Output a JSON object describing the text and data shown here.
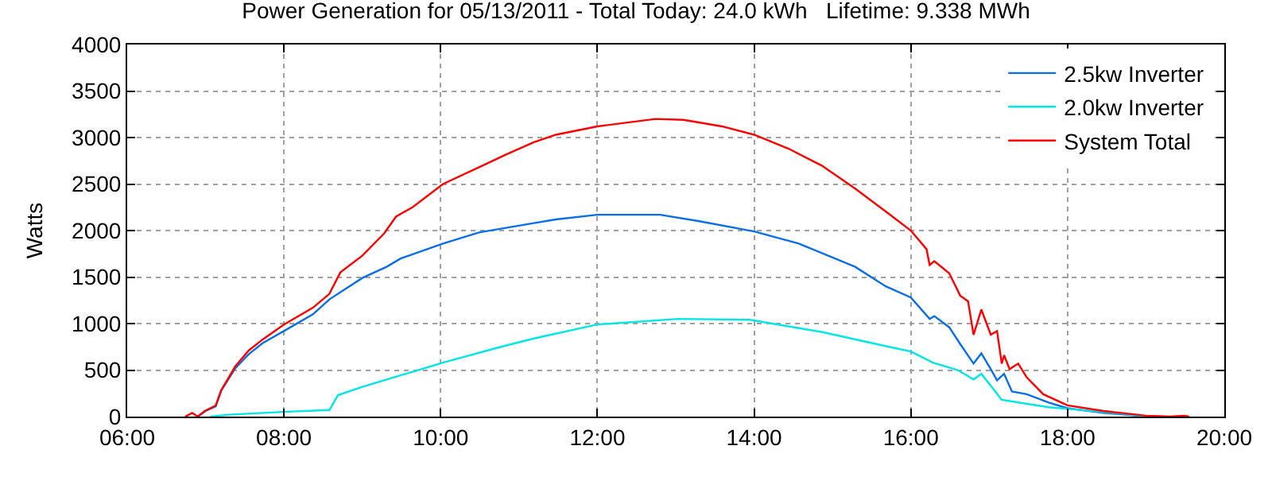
{
  "chart_data": {
    "type": "line",
    "title": "Power Generation for 05/13/2011 - Total Today: 24.0 kWh   Lifetime: 9.338 MWh",
    "ylabel": "Watts",
    "xlim": [
      6,
      20
    ],
    "xticks": [
      {
        "value": 6,
        "label": "06:00"
      },
      {
        "value": 8,
        "label": "08:00"
      },
      {
        "value": 10,
        "label": "10:00"
      },
      {
        "value": 12,
        "label": "12:00"
      },
      {
        "value": 14,
        "label": "14:00"
      },
      {
        "value": 16,
        "label": "16:00"
      },
      {
        "value": 18,
        "label": "18:00"
      },
      {
        "value": 20,
        "label": "20:00"
      }
    ],
    "ylim": [
      0,
      4000
    ],
    "yticks": [
      0,
      500,
      1000,
      1500,
      2000,
      2500,
      3000,
      3500,
      4000
    ],
    "grid": true,
    "legend": "top right",
    "marker": "none",
    "line_style": "solid",
    "series": [
      {
        "name": "2.5kw Inverter",
        "color": "#0a6ee6",
        "x": [
          6.9,
          7.0,
          7.13,
          7.2,
          7.38,
          7.55,
          7.73,
          8.0,
          8.37,
          8.58,
          9.0,
          9.31,
          9.49,
          10.03,
          10.49,
          11.19,
          11.47,
          12.0,
          12.8,
          13.3,
          14.0,
          14.57,
          15.29,
          15.68,
          16.0,
          16.24,
          16.3,
          16.49,
          16.63,
          16.8,
          16.9,
          17.02,
          17.1,
          17.19,
          17.29,
          17.48,
          17.76,
          18.0,
          18.46,
          18.89,
          19.0
        ],
        "values": [
          0,
          60,
          110,
          280,
          520,
          670,
          790,
          920,
          1100,
          1260,
          1490,
          1610,
          1700,
          1860,
          1980,
          2080,
          2120,
          2170,
          2170,
          2100,
          1990,
          1860,
          1610,
          1400,
          1280,
          1050,
          1080,
          960,
          780,
          570,
          680,
          510,
          390,
          460,
          270,
          240,
          150,
          90,
          40,
          10,
          0
        ]
      },
      {
        "name": "2.0kw Inverter",
        "color": "#00e6e6",
        "x": [
          7.06,
          7.3,
          7.98,
          8.58,
          8.69,
          9.0,
          10.03,
          10.77,
          11.19,
          12.0,
          13.03,
          13.95,
          14.86,
          15.72,
          16.0,
          16.28,
          16.6,
          16.8,
          16.9,
          17.05,
          17.16,
          17.76,
          18.46,
          18.89,
          19.0
        ],
        "values": [
          0,
          20,
          50,
          70,
          230,
          320,
          580,
          750,
          840,
          990,
          1050,
          1040,
          910,
          750,
          700,
          580,
          500,
          400,
          460,
          300,
          180,
          100,
          50,
          15,
          0
        ]
      },
      {
        "name": "System Total",
        "color": "#ff0000",
        "x": [
          6.74,
          6.83,
          6.9,
          6.99,
          7.13,
          7.2,
          7.38,
          7.55,
          7.73,
          8.0,
          8.37,
          8.58,
          8.72,
          9.0,
          9.28,
          9.43,
          9.64,
          10.03,
          10.49,
          10.84,
          11.19,
          11.47,
          12.0,
          12.74,
          13.1,
          13.59,
          14.0,
          14.44,
          14.86,
          15.29,
          15.72,
          16.0,
          16.2,
          16.24,
          16.3,
          16.49,
          16.63,
          16.73,
          16.8,
          16.9,
          17.02,
          17.1,
          17.16,
          17.19,
          17.26,
          17.37,
          17.48,
          17.69,
          18.0,
          18.46,
          18.89,
          19.0,
          19.17,
          19.3,
          19.49,
          19.55
        ],
        "values": [
          0,
          40,
          0,
          60,
          120,
          285,
          540,
          710,
          830,
          990,
          1170,
          1320,
          1550,
          1730,
          1970,
          2150,
          2250,
          2500,
          2680,
          2820,
          2950,
          3030,
          3120,
          3200,
          3190,
          3120,
          3030,
          2880,
          2700,
          2450,
          2180,
          2000,
          1800,
          1630,
          1670,
          1540,
          1300,
          1240,
          880,
          1150,
          880,
          920,
          570,
          660,
          510,
          570,
          420,
          240,
          120,
          60,
          20,
          10,
          5,
          0,
          10,
          0
        ]
      }
    ]
  }
}
